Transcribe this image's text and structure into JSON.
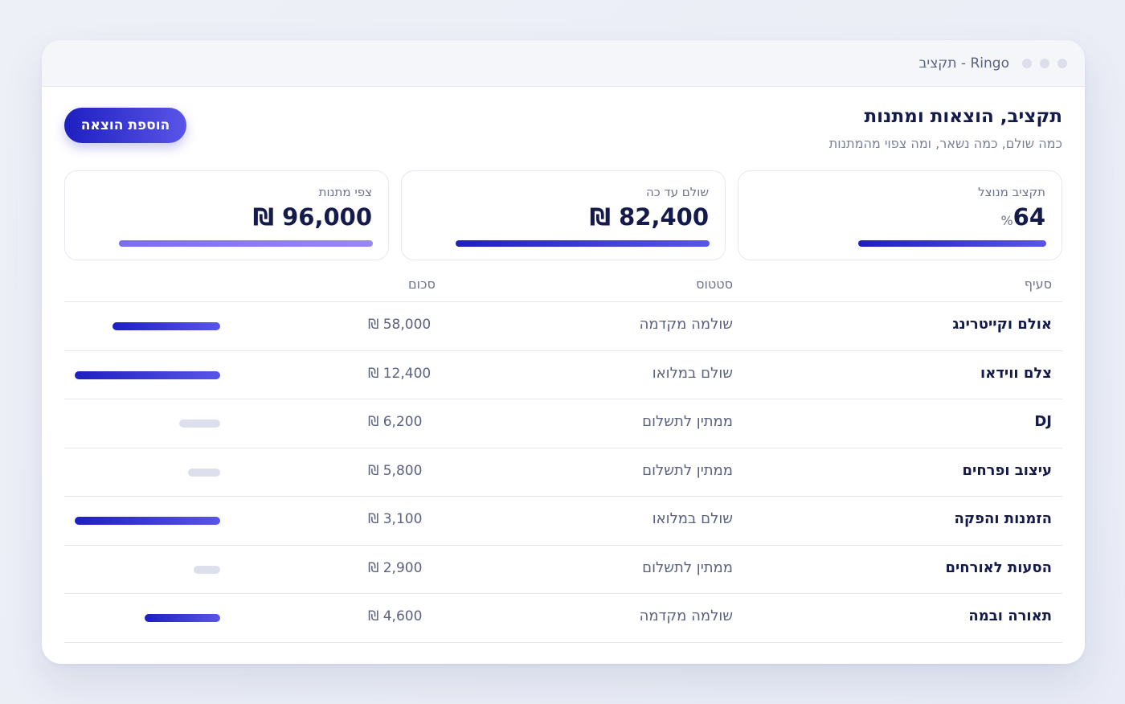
{
  "window": {
    "title": "Ringo - תקציב"
  },
  "header": {
    "title": "תקציב, הוצאות ומתנות",
    "subtitle": "כמה שולם, כמה נשאר, ומה צפוי מהמתנות",
    "add_button_label": "הוספת הוצאה"
  },
  "cards": [
    {
      "label": "תקציב מנוצל",
      "value": "64",
      "unit": "%",
      "progress": 0.64
    },
    {
      "label": "שולם עד כה",
      "value": "₪ 82,400",
      "progress": 0.82
    },
    {
      "label": "צפי מתנות",
      "value": "₪ 96,000",
      "progress": 0.96
    }
  ],
  "table": {
    "headers": {
      "item": "סעיף",
      "status": "סטטוס",
      "amount": "סכום"
    },
    "rows": [
      {
        "item": "אולם וקייטרינג",
        "status": "שולמה מקדמה",
        "amount": "₪ 58,000",
        "paid_fraction": 0.74,
        "state": "partial"
      },
      {
        "item": "צלם ווידאו",
        "status": "שולם במלואו",
        "amount": "₪ 12,400",
        "paid_fraction": 1.0,
        "state": "paid"
      },
      {
        "item": "DJ",
        "status": "ממתין לתשלום",
        "amount": "₪ 6,200",
        "paid_fraction": 0.28,
        "state": "pending"
      },
      {
        "item": "עיצוב ופרחים",
        "status": "ממתין לתשלום",
        "amount": "₪ 5,800",
        "paid_fraction": 0.22,
        "state": "pending"
      },
      {
        "item": "הזמנות והפקה",
        "status": "שולם במלואו",
        "amount": "₪ 3,100",
        "paid_fraction": 1.0,
        "state": "paid"
      },
      {
        "item": "הסעות לאורחים",
        "status": "ממתין לתשלום",
        "amount": "₪ 2,900",
        "paid_fraction": 0.18,
        "state": "pending"
      },
      {
        "item": "תאורה ובמה",
        "status": "שולמה מקדמה",
        "amount": "₪ 4,600",
        "paid_fraction": 0.52,
        "state": "partial"
      }
    ]
  },
  "colors": {
    "accent_start": "#1d1fc0",
    "accent_end": "#5a55e8",
    "gift_bar": "#8b7bf3",
    "pending_bar": "#dde0ec",
    "text_primary": "#141a4a",
    "text_muted": "#6c7290"
  }
}
